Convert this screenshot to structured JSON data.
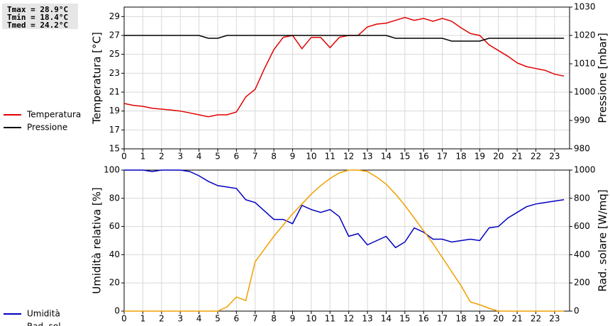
{
  "stats": [
    "Tmax = 28.9°C",
    "Tmin = 18.4°C",
    "Tmed = 24.2°C"
  ],
  "chart_data": [
    {
      "type": "line",
      "ylabel": "Temperatura [°C]",
      "y2label": "Pressione [mbar]",
      "grid": true,
      "x": [
        0,
        0.5,
        1,
        1.5,
        2,
        2.5,
        3,
        3.5,
        4,
        4.5,
        5,
        5.5,
        6,
        6.5,
        7,
        7.5,
        8,
        8.5,
        9,
        9.5,
        10,
        10.5,
        11,
        11.5,
        12,
        12.5,
        13,
        13.5,
        14,
        14.5,
        15,
        15.5,
        16,
        16.5,
        17,
        17.5,
        18,
        18.5,
        19,
        19.5,
        20,
        20.5,
        21,
        21.5,
        22,
        22.5,
        23,
        23.5
      ],
      "xlim": [
        0,
        23.8
      ],
      "xticks": [
        0,
        1,
        2,
        3,
        4,
        5,
        6,
        7,
        8,
        9,
        10,
        11,
        12,
        13,
        14,
        15,
        16,
        17,
        18,
        19,
        20,
        21,
        22,
        23
      ],
      "ylim": [
        15,
        30
      ],
      "yticks": [
        15,
        17,
        19,
        21,
        23,
        25,
        27,
        29
      ],
      "y2lim": [
        980,
        1030
      ],
      "y2ticks": [
        980,
        990,
        1000,
        1010,
        1020,
        1030
      ],
      "series": [
        {
          "name": "Temperatura",
          "color": "#e00000",
          "values": [
            19.8,
            19.6,
            19.5,
            19.3,
            19.2,
            19.1,
            19.0,
            18.8,
            18.6,
            18.4,
            18.6,
            18.6,
            18.9,
            20.5,
            21.3,
            23.5,
            25.5,
            26.8,
            27.0,
            25.6,
            26.8,
            26.8,
            25.7,
            26.8,
            27.0,
            27.0,
            27.9,
            28.2,
            28.3,
            28.6,
            28.9,
            28.6,
            28.8,
            28.5,
            28.8,
            28.5,
            27.8,
            27.2,
            27.0,
            26.0,
            25.4,
            24.8,
            24.1,
            23.7,
            23.5,
            23.3,
            22.9,
            22.7
          ]
        },
        {
          "name": "Pressione",
          "color": "#000000",
          "axis": "y2",
          "values": [
            1020,
            1020,
            1020,
            1020,
            1020,
            1020,
            1020,
            1020,
            1020,
            1019,
            1019,
            1020,
            1020,
            1020,
            1020,
            1020,
            1020,
            1020,
            1020,
            1020,
            1020,
            1020,
            1020,
            1020,
            1020,
            1020,
            1020,
            1020,
            1020,
            1019,
            1019,
            1019,
            1019,
            1019,
            1019,
            1018,
            1018,
            1018,
            1018,
            1019,
            1019,
            1019,
            1019,
            1019,
            1019,
            1019,
            1019,
            1019
          ]
        }
      ]
    },
    {
      "type": "line",
      "ylabel": "Umidità relativa [%]",
      "y2label": "Rad. solare [W/mq]",
      "grid": true,
      "x": [
        0,
        0.5,
        1,
        1.5,
        2,
        2.5,
        3,
        3.5,
        4,
        4.5,
        5,
        5.5,
        6,
        6.5,
        7,
        7.5,
        8,
        8.5,
        9,
        9.5,
        10,
        10.5,
        11,
        11.5,
        12,
        12.5,
        13,
        13.5,
        14,
        14.5,
        15,
        15.5,
        16,
        16.5,
        17,
        17.5,
        18,
        18.5,
        19,
        19.5,
        20,
        20.5,
        21,
        21.5,
        22,
        22.5,
        23,
        23.5
      ],
      "xlim": [
        0,
        23.8
      ],
      "xticks": [
        0,
        1,
        2,
        3,
        4,
        5,
        6,
        7,
        8,
        9,
        10,
        11,
        12,
        13,
        14,
        15,
        16,
        17,
        18,
        19,
        20,
        21,
        22,
        23
      ],
      "ylim": [
        0,
        100
      ],
      "yticks": [
        0,
        20,
        40,
        60,
        80,
        100
      ],
      "y2lim": [
        0,
        1000
      ],
      "y2ticks": [
        0,
        200,
        400,
        600,
        800,
        1000
      ],
      "series": [
        {
          "name": "Umidità",
          "color": "#0000c0",
          "values": [
            100,
            100,
            100,
            99,
            100,
            100,
            100,
            99,
            96,
            92,
            89,
            88,
            87,
            79,
            77,
            71,
            65,
            65,
            62,
            75,
            72,
            70,
            72,
            67,
            53,
            55,
            47,
            50,
            53,
            45,
            49,
            59,
            56,
            51,
            51,
            49,
            50,
            51,
            50,
            59,
            60,
            66,
            70,
            74,
            76,
            77,
            78,
            79
          ]
        },
        {
          "name": "Rad. sol.",
          "color": "#f0a000",
          "axis": "y2",
          "values": [
            0,
            0,
            0,
            0,
            0,
            0,
            0,
            0,
            0,
            0,
            0,
            30,
            100,
            75,
            350,
            440,
            530,
            610,
            690,
            760,
            830,
            890,
            940,
            980,
            1000,
            1000,
            990,
            950,
            900,
            830,
            750,
            660,
            570,
            480,
            380,
            280,
            180,
            65,
            45,
            20,
            0,
            0,
            0,
            0,
            0,
            0,
            0,
            0
          ]
        }
      ]
    }
  ]
}
